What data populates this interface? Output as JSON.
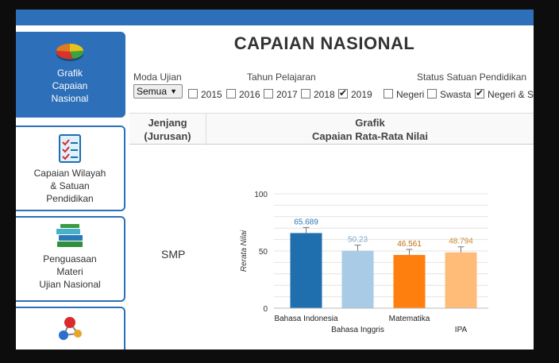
{
  "header": {
    "title": "CAPAIAN NASIONAL"
  },
  "sidebar": {
    "items": [
      {
        "label1": "Grafik",
        "label2": "Capaian",
        "label3": "Nasional"
      },
      {
        "label1": "Capaian Wilayah",
        "label2": "& Satuan",
        "label3": "Pendidikan"
      },
      {
        "label1": "Penguasaan",
        "label2": "Materi",
        "label3": "Ujian Nasional"
      }
    ]
  },
  "filters": {
    "moda_label": "Moda Ujian",
    "moda_value": "Semua",
    "tahun_label": "Tahun Pelajaran",
    "status_label": "Status Satuan Pendidikan",
    "years": [
      {
        "label": "2015",
        "checked": false
      },
      {
        "label": "2016",
        "checked": false
      },
      {
        "label": "2017",
        "checked": false
      },
      {
        "label": "2018",
        "checked": false
      },
      {
        "label": "2019",
        "checked": true
      }
    ],
    "status": [
      {
        "label": "Negeri",
        "checked": false
      },
      {
        "label": "Swasta",
        "checked": false
      },
      {
        "label": "Negeri & Swasta",
        "checked": true
      }
    ]
  },
  "table": {
    "col1_line1": "Jenjang",
    "col1_line2": "(Jurusan)",
    "col2_line1": "Grafik",
    "col2_line2": "Capaian Rata-Rata Nilai",
    "row_jenjang": "SMP"
  },
  "chart_data": {
    "type": "bar",
    "categories": [
      "Bahasa Indonesia",
      "Bahasa Inggris",
      "Matematika",
      "IPA"
    ],
    "values": [
      65.689,
      50.23,
      46.561,
      48.794
    ],
    "value_labels": [
      "65.689",
      "50.23",
      "46.561",
      "48.794"
    ],
    "colors": [
      "#1f6fae",
      "#a9cbe5",
      "#ff7f0e",
      "#ffbb78"
    ],
    "label_colors": [
      "#2a7ab8",
      "#7aa7cc",
      "#c06a10",
      "#c98b30"
    ],
    "ylabel": "Rerata Nilai",
    "ylim": [
      0,
      100
    ],
    "yticks": [
      "0",
      "50",
      "100"
    ],
    "grid": true
  }
}
